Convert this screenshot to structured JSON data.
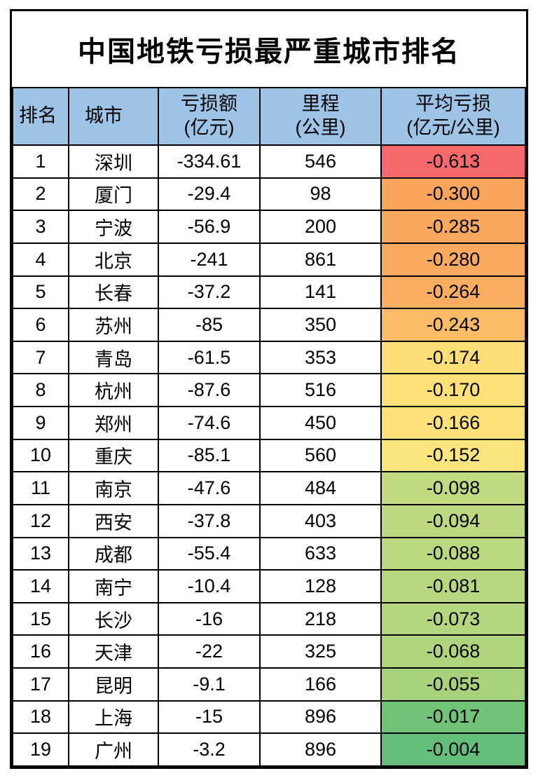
{
  "chart_data": {
    "type": "table",
    "title": "中国地铁亏损最严重城市排名",
    "header_bg": "#9DC3E6",
    "headers": {
      "rank": "排名",
      "city": "城市",
      "loss": [
        "亏损额",
        "(亿元)"
      ],
      "mileage": [
        "里程",
        "(公里)"
      ],
      "avg_loss": [
        "平均亏损",
        "(亿元/公里)"
      ]
    },
    "color_scale": {
      "style": "red-yellow-green heatmap applied to 平均亏损 column",
      "red": "#F8696B",
      "yellow": "#FFE179",
      "green": "#63BE7B"
    },
    "rows": [
      {
        "rank": "1",
        "city": "深圳",
        "loss": "-334.61",
        "mileage": "546",
        "avg_loss": "-0.613",
        "avg_loss_color": "#F8696B"
      },
      {
        "rank": "2",
        "city": "厦门",
        "loss": "-29.4",
        "mileage": "98",
        "avg_loss": "-0.300",
        "avg_loss_color": "#FAA55C"
      },
      {
        "rank": "3",
        "city": "宁波",
        "loss": "-56.9",
        "mileage": "200",
        "avg_loss": "-0.285",
        "avg_loss_color": "#FAA85E"
      },
      {
        "rank": "4",
        "city": "北京",
        "loss": "-241",
        "mileage": "861",
        "avg_loss": "-0.280",
        "avg_loss_color": "#FAA95E"
      },
      {
        "rank": "5",
        "city": "长春",
        "loss": "-37.2",
        "mileage": "141",
        "avg_loss": "-0.264",
        "avg_loss_color": "#FBAD60"
      },
      {
        "rank": "6",
        "city": "苏州",
        "loss": "-85",
        "mileage": "350",
        "avg_loss": "-0.243",
        "avg_loss_color": "#FCBC67"
      },
      {
        "rank": "7",
        "city": "青岛",
        "loss": "-61.5",
        "mileage": "353",
        "avg_loss": "-0.174",
        "avg_loss_color": "#FEDE76"
      },
      {
        "rank": "8",
        "city": "杭州",
        "loss": "-87.6",
        "mileage": "516",
        "avg_loss": "-0.170",
        "avg_loss_color": "#FFE078"
      },
      {
        "rank": "9",
        "city": "郑州",
        "loss": "-74.6",
        "mileage": "450",
        "avg_loss": "-0.166",
        "avg_loss_color": "#FFE179"
      },
      {
        "rank": "10",
        "city": "重庆",
        "loss": "-85.1",
        "mileage": "560",
        "avg_loss": "-0.152",
        "avg_loss_color": "#FCE47C"
      },
      {
        "rank": "11",
        "city": "南京",
        "loss": "-47.6",
        "mileage": "484",
        "avg_loss": "-0.098",
        "avg_loss_color": "#C0DA80"
      },
      {
        "rank": "12",
        "city": "西安",
        "loss": "-37.8",
        "mileage": "403",
        "avg_loss": "-0.094",
        "avg_loss_color": "#BDD97F"
      },
      {
        "rank": "13",
        "city": "成都",
        "loss": "-55.4",
        "mileage": "633",
        "avg_loss": "-0.088",
        "avg_loss_color": "#BAD87E"
      },
      {
        "rank": "14",
        "city": "南宁",
        "loss": "-10.4",
        "mileage": "128",
        "avg_loss": "-0.081",
        "avg_loss_color": "#B7D77E"
      },
      {
        "rank": "15",
        "city": "长沙",
        "loss": "-16",
        "mileage": "218",
        "avg_loss": "-0.073",
        "avg_loss_color": "#B4D67D"
      },
      {
        "rank": "16",
        "city": "天津",
        "loss": "-22",
        "mileage": "325",
        "avg_loss": "-0.068",
        "avg_loss_color": "#B0D47C"
      },
      {
        "rank": "17",
        "city": "昆明",
        "loss": "-9.1",
        "mileage": "166",
        "avg_loss": "-0.055",
        "avg_loss_color": "#A7D17B"
      },
      {
        "rank": "18",
        "city": "上海",
        "loss": "-15",
        "mileage": "896",
        "avg_loss": "-0.017",
        "avg_loss_color": "#70C377"
      },
      {
        "rank": "19",
        "city": "广州",
        "loss": "-3.2",
        "mileage": "896",
        "avg_loss": "-0.004",
        "avg_loss_color": "#64BF7B"
      }
    ]
  }
}
